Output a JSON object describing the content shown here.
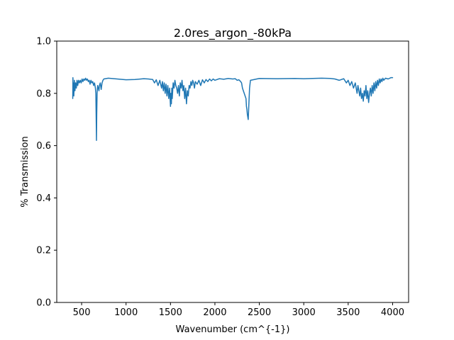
{
  "chart_data": {
    "type": "line",
    "title": "2.0res_argon_-80kPa",
    "xlabel": "Wavenumber (cm^{-1})",
    "ylabel": "% Transmission",
    "xlim": [
      220,
      4180
    ],
    "ylim": [
      0.0,
      1.0
    ],
    "xticks": [
      500,
      1000,
      1500,
      2000,
      2500,
      3000,
      3500,
      4000
    ],
    "yticks": [
      0.0,
      0.2,
      0.4,
      0.6,
      0.8,
      1.0
    ],
    "xtick_labels": [
      "500",
      "1000",
      "1500",
      "2000",
      "2500",
      "3000",
      "3500",
      "4000"
    ],
    "ytick_labels": [
      "0.0",
      "0.2",
      "0.4",
      "0.6",
      "0.8",
      "1.0"
    ],
    "grid": false,
    "series": [
      {
        "color": "#1f77b4",
        "x": [
          400,
          402,
          405,
          408,
          412,
          418,
          425,
          432,
          440,
          448,
          456,
          465,
          475,
          485,
          495,
          505,
          515,
          525,
          535,
          545,
          555,
          565,
          575,
          585,
          595,
          605,
          615,
          625,
          635,
          645,
          655,
          660,
          664,
          667,
          670,
          674,
          680,
          688,
          695,
          700,
          710,
          720,
          730,
          740,
          750,
          800,
          900,
          1000,
          1100,
          1200,
          1250,
          1300,
          1320,
          1340,
          1360,
          1380,
          1400,
          1410,
          1420,
          1430,
          1440,
          1450,
          1460,
          1470,
          1480,
          1490,
          1500,
          1505,
          1510,
          1515,
          1520,
          1530,
          1540,
          1550,
          1560,
          1570,
          1580,
          1590,
          1600,
          1610,
          1620,
          1630,
          1640,
          1650,
          1660,
          1670,
          1680,
          1690,
          1700,
          1710,
          1720,
          1730,
          1740,
          1750,
          1760,
          1770,
          1780,
          1800,
          1820,
          1840,
          1860,
          1880,
          1900,
          1920,
          1940,
          1960,
          1980,
          2000,
          2050,
          2100,
          2150,
          2200,
          2230,
          2250,
          2270,
          2290,
          2300,
          2310,
          2320,
          2330,
          2340,
          2350,
          2355,
          2360,
          2365,
          2370,
          2375,
          2380,
          2385,
          2390,
          2400,
          2500,
          2700,
          2900,
          3000,
          3100,
          3200,
          3300,
          3350,
          3400,
          3450,
          3480,
          3500,
          3520,
          3540,
          3560,
          3580,
          3600,
          3610,
          3620,
          3630,
          3640,
          3650,
          3660,
          3670,
          3680,
          3690,
          3700,
          3710,
          3720,
          3730,
          3740,
          3750,
          3760,
          3770,
          3780,
          3790,
          3800,
          3810,
          3820,
          3830,
          3840,
          3850,
          3860,
          3870,
          3880,
          3890,
          3900,
          3920,
          3950,
          3980,
          4000
        ],
        "y": [
          0.78,
          0.86,
          0.8,
          0.84,
          0.79,
          0.85,
          0.81,
          0.84,
          0.82,
          0.85,
          0.83,
          0.85,
          0.84,
          0.85,
          0.84,
          0.855,
          0.845,
          0.855,
          0.85,
          0.858,
          0.85,
          0.855,
          0.845,
          0.85,
          0.835,
          0.85,
          0.84,
          0.845,
          0.83,
          0.84,
          0.82,
          0.8,
          0.7,
          0.62,
          0.72,
          0.8,
          0.83,
          0.82,
          0.81,
          0.83,
          0.84,
          0.815,
          0.84,
          0.85,
          0.855,
          0.858,
          0.855,
          0.852,
          0.853,
          0.856,
          0.855,
          0.853,
          0.84,
          0.852,
          0.83,
          0.85,
          0.82,
          0.845,
          0.81,
          0.84,
          0.8,
          0.835,
          0.79,
          0.83,
          0.78,
          0.82,
          0.75,
          0.8,
          0.76,
          0.82,
          0.78,
          0.84,
          0.82,
          0.85,
          0.83,
          0.82,
          0.8,
          0.83,
          0.79,
          0.84,
          0.82,
          0.85,
          0.81,
          0.83,
          0.78,
          0.82,
          0.76,
          0.81,
          0.79,
          0.83,
          0.82,
          0.845,
          0.83,
          0.85,
          0.84,
          0.82,
          0.845,
          0.835,
          0.85,
          0.83,
          0.852,
          0.84,
          0.853,
          0.845,
          0.855,
          0.848,
          0.855,
          0.85,
          0.856,
          0.854,
          0.857,
          0.855,
          0.856,
          0.85,
          0.852,
          0.845,
          0.84,
          0.82,
          0.81,
          0.8,
          0.79,
          0.78,
          0.75,
          0.74,
          0.72,
          0.71,
          0.7,
          0.74,
          0.78,
          0.82,
          0.85,
          0.857,
          0.856,
          0.857,
          0.856,
          0.857,
          0.858,
          0.857,
          0.855,
          0.85,
          0.856,
          0.84,
          0.85,
          0.83,
          0.845,
          0.82,
          0.84,
          0.8,
          0.83,
          0.81,
          0.79,
          0.82,
          0.78,
          0.8,
          0.77,
          0.81,
          0.79,
          0.83,
          0.78,
          0.81,
          0.765,
          0.8,
          0.82,
          0.79,
          0.83,
          0.8,
          0.84,
          0.81,
          0.845,
          0.82,
          0.85,
          0.83,
          0.855,
          0.84,
          0.855,
          0.845,
          0.858,
          0.85,
          0.858,
          0.855,
          0.86,
          0.86
        ]
      }
    ]
  }
}
